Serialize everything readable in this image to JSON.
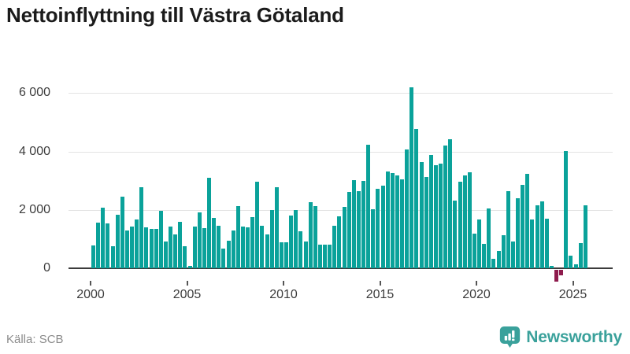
{
  "title": "Nettoinflyttning till Västra Götaland",
  "source": "Källa: SCB",
  "brand": {
    "name": "Newsworthy"
  },
  "colors": {
    "bar_positive": "#0aa29a",
    "bar_negative": "#8e1b4d",
    "brand_teal": "#3aa19b",
    "axis_text": "#3c3c3c",
    "zero_line": "#3b3b3b",
    "gridline": "#e3e3e3"
  },
  "chart_data": {
    "type": "bar",
    "title": "Nettoinflyttning till Västra Götaland",
    "frequency": "quarterly",
    "period_start": "2000Q1",
    "period_end": "2025Q3",
    "values": [
      790,
      1560,
      2070,
      1540,
      760,
      1840,
      2450,
      1300,
      1420,
      1660,
      2770,
      1390,
      1350,
      1345,
      1975,
      915,
      1425,
      1165,
      1590,
      745,
      90,
      1420,
      1910,
      1365,
      3085,
      1730,
      1460,
      670,
      935,
      1300,
      2135,
      1435,
      1410,
      1760,
      2950,
      1455,
      1155,
      1980,
      2780,
      880,
      900,
      1805,
      2000,
      1275,
      920,
      2260,
      2115,
      810,
      820,
      800,
      1450,
      1775,
      2100,
      2610,
      3010,
      2650,
      2995,
      4225,
      2010,
      2725,
      2835,
      3310,
      3265,
      3175,
      3040,
      4055,
      6200,
      4765,
      3640,
      3115,
      3875,
      3535,
      3595,
      4205,
      4430,
      2325,
      2950,
      3180,
      3295,
      1185,
      1665,
      825,
      2055,
      310,
      595,
      1120,
      2635,
      915,
      2405,
      2860,
      3220,
      1665,
      2165,
      2280,
      1710,
      80,
      -415,
      -190,
      4020,
      430,
      135,
      850,
      2155
    ],
    "x_tick_labels": [
      "2000",
      "2005",
      "2010",
      "2015",
      "2020",
      "2025"
    ],
    "y_ticks": [
      6000,
      4000,
      2000,
      0
    ],
    "y_tick_labels": [
      "6 000",
      "4 000",
      "2 000",
      "0"
    ],
    "ylim": [
      -500,
      6600
    ],
    "grid": "horizontal",
    "legend": "none"
  }
}
